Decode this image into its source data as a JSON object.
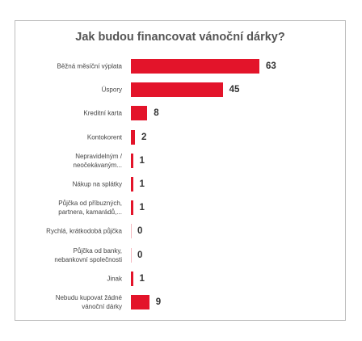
{
  "chart_data": {
    "type": "bar",
    "orientation": "horizontal",
    "title": "Jak budou financovat vánoční dárky?",
    "categories": [
      "Běžná měsíční výplata",
      "Úspory",
      "Kreditní karta",
      "Kontokorent",
      "Nepravidelným /\nneočekávaným...",
      "Nákup na splátky",
      "Půjčka od příbuzných,\npartnera, kamarádů,...",
      "Rychlá, krátkodobá půjčka",
      "Půjčka od banky,\nnebankovní společnosti",
      "Jinak",
      "Nebudu kupovat žádné\nvánoční dárky"
    ],
    "values": [
      63,
      45,
      8,
      2,
      1,
      1,
      1,
      0,
      0,
      1,
      9
    ],
    "color": "#e3142a"
  }
}
